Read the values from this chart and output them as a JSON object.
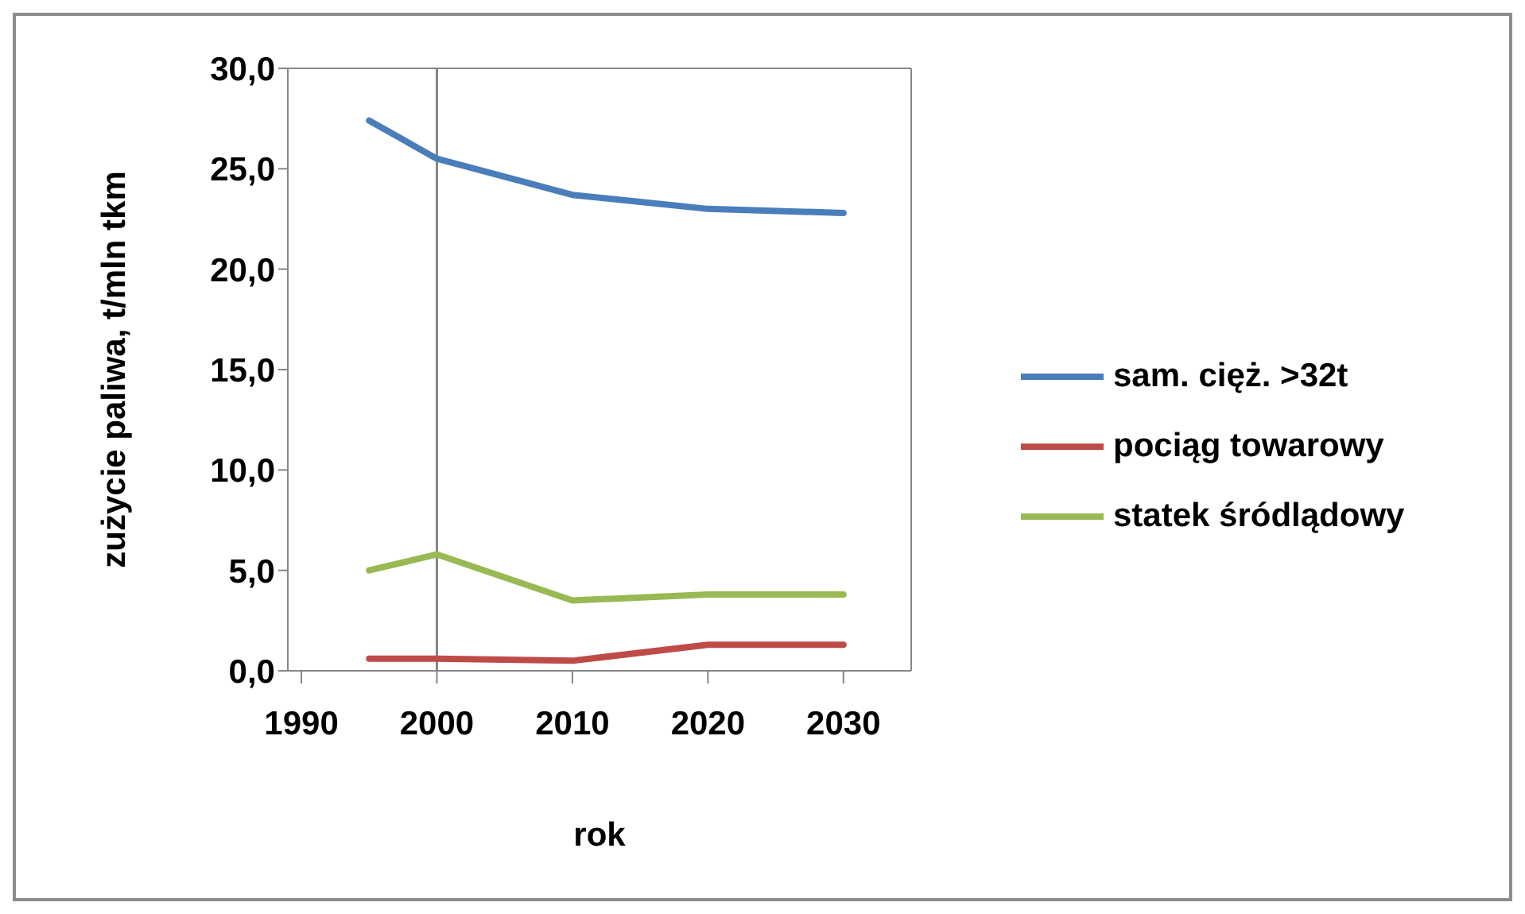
{
  "chart_data": {
    "type": "line",
    "xlabel": "rok",
    "ylabel": "zużycie paliwa, t/mln tkm",
    "x": [
      1995,
      2000,
      2010,
      2020,
      2030
    ],
    "series": [
      {
        "name": "sam. cięż. >32t",
        "color": "#4a7ebb",
        "values": [
          27.4,
          25.5,
          23.7,
          23.0,
          22.8
        ]
      },
      {
        "name": "pociąg towarowy",
        "color": "#be4b48",
        "values": [
          0.6,
          0.6,
          0.5,
          1.3,
          1.3
        ]
      },
      {
        "name": "statek śródlądowy",
        "color": "#98b954",
        "values": [
          5.0,
          5.8,
          3.5,
          3.8,
          3.8
        ]
      }
    ],
    "xlim": [
      1989,
      2035
    ],
    "xticks": [
      1990,
      2000,
      2010,
      2020,
      2030
    ],
    "ylim": [
      0,
      30
    ],
    "yticks": [
      {
        "value": 0,
        "label": "0,0"
      },
      {
        "value": 5,
        "label": "5,0"
      },
      {
        "value": 10,
        "label": "10,0"
      },
      {
        "value": 15,
        "label": "15,0"
      },
      {
        "value": 20,
        "label": "20,0"
      },
      {
        "value": 25,
        "label": "25,0"
      },
      {
        "value": 30,
        "label": "30,0"
      }
    ],
    "ref_lines": [
      {
        "axis": "x",
        "value": 2000,
        "label": null,
        "color": "#868686"
      }
    ],
    "grid": false,
    "legend": "right",
    "marker": "none",
    "line_style": "solid"
  }
}
